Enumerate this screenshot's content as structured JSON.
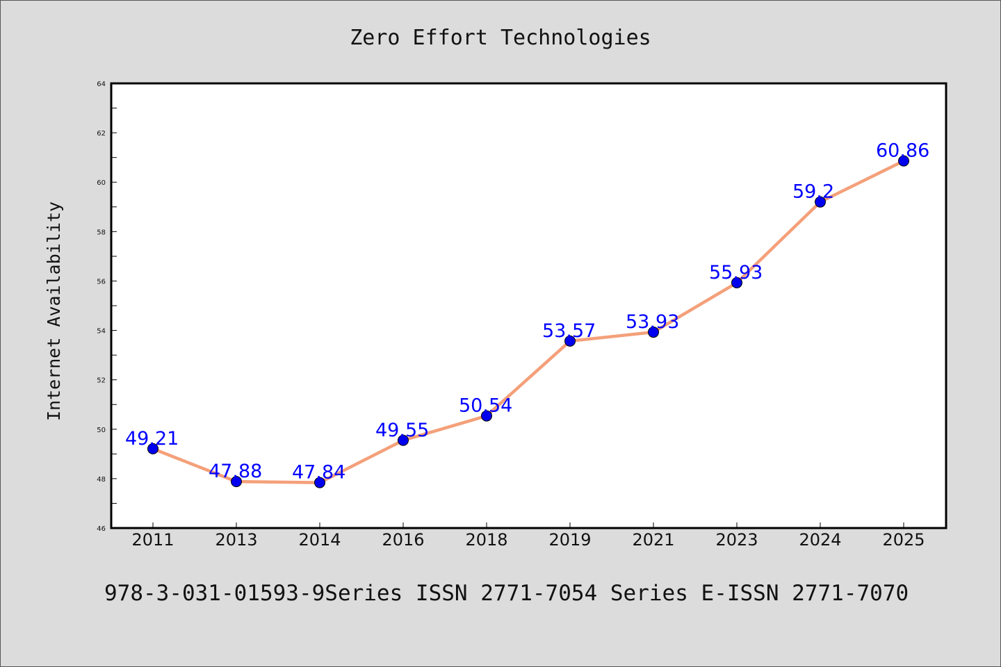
{
  "colors": {
    "background": "#dcdcdc",
    "plot_background": "#ffffff",
    "line": "#f4a07a",
    "marker": "#0000ee",
    "data_label": "#0000ff"
  },
  "chart_data": {
    "type": "line",
    "title": "Zero Effort Technologies",
    "xlabel": "",
    "ylabel": "Internet Availability",
    "categories": [
      "2011",
      "2013",
      "2014",
      "2016",
      "2018",
      "2019",
      "2021",
      "2023",
      "2024",
      "2025"
    ],
    "series": [
      {
        "values": [
          49.21,
          47.88,
          47.84,
          49.55,
          50.54,
          53.57,
          53.93,
          55.93,
          59.2,
          60.86
        ]
      }
    ],
    "data_labels": [
      "49.21",
      "47.88",
      "47.84",
      "49.55",
      "50.54",
      "53.57",
      "53.93",
      "55.93",
      "59.2",
      "60.86"
    ],
    "ylim": [
      46,
      64
    ],
    "yticks": [
      "46",
      "48",
      "50",
      "52",
      "54",
      "56",
      "58",
      "60",
      "62",
      "64"
    ],
    "grid": false,
    "legend": "none"
  },
  "footer": "978-3-031-01593-9Series ISSN 2771-7054 Series E-ISSN 2771-7070"
}
